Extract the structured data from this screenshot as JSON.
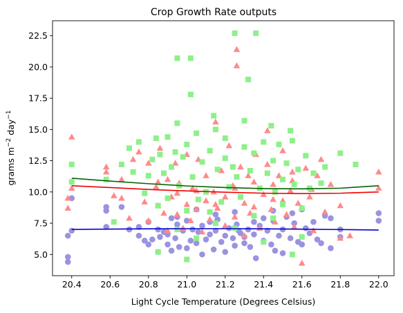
{
  "chart_data": {
    "type": "scatter",
    "title": "Crop Growth Rate outputs",
    "xlabel": "Light Cycle Temperature (Degrees Celsius)",
    "ylabel": {
      "base": "grams m",
      "exp1": "−2",
      "mid": " day",
      "exp2": "−1"
    },
    "xlim": [
      20.3,
      22.08
    ],
    "ylim": [
      3.3,
      23.7
    ],
    "x_ticks": [
      "20.4",
      "20.6",
      "20.8",
      "21.0",
      "21.2",
      "21.4",
      "21.6",
      "21.8",
      "22.0"
    ],
    "y_ticks": [
      "5.0",
      "7.5",
      "10.0",
      "12.5",
      "15.0",
      "17.5",
      "20.0",
      "22.5"
    ],
    "grid": false,
    "legend": "none",
    "colors": {
      "purple_series": "#9a93e0",
      "pink_series": "#ff8a8a",
      "green_series": "#8ef08a",
      "blue_fit": "#0000cc",
      "red_fit": "#ee0000",
      "green_fit": "#006400"
    },
    "series": [
      {
        "marker": "circle",
        "color": "#9a93e0",
        "points": [
          [
            20.38,
            4.4
          ],
          [
            20.38,
            4.8
          ],
          [
            20.38,
            6.5
          ],
          [
            20.4,
            6.9
          ],
          [
            20.4,
            9.5
          ],
          [
            20.58,
            7.2
          ],
          [
            20.58,
            8.5
          ],
          [
            20.58,
            8.8
          ],
          [
            20.66,
            8.8
          ],
          [
            20.7,
            7.0
          ],
          [
            20.75,
            7.2
          ],
          [
            20.75,
            6.5
          ],
          [
            20.78,
            6.1
          ],
          [
            20.8,
            5.8
          ],
          [
            20.8,
            7.6
          ],
          [
            20.82,
            6.2
          ],
          [
            20.85,
            5.2
          ],
          [
            20.85,
            7.0
          ],
          [
            20.86,
            6.4
          ],
          [
            20.88,
            6.8
          ],
          [
            20.9,
            6.6
          ],
          [
            20.9,
            5.8
          ],
          [
            20.92,
            7.9
          ],
          [
            20.92,
            5.3
          ],
          [
            20.94,
            6.3
          ],
          [
            20.95,
            7.4
          ],
          [
            20.96,
            5.6
          ],
          [
            20.98,
            6.9
          ],
          [
            21.0,
            5.5
          ],
          [
            21.0,
            7.7
          ],
          [
            21.02,
            6.1
          ],
          [
            21.03,
            7.0
          ],
          [
            21.05,
            5.9
          ],
          [
            21.06,
            6.8
          ],
          [
            21.08,
            7.3
          ],
          [
            21.08,
            5.0
          ],
          [
            21.1,
            6.2
          ],
          [
            21.12,
            7.6
          ],
          [
            21.12,
            6.6
          ],
          [
            21.14,
            5.4
          ],
          [
            21.15,
            6.9
          ],
          [
            21.16,
            7.8
          ],
          [
            21.18,
            6.0
          ],
          [
            21.2,
            6.5
          ],
          [
            21.2,
            5.2
          ],
          [
            21.22,
            7.1
          ],
          [
            21.24,
            6.3
          ],
          [
            21.25,
            5.7
          ],
          [
            21.26,
            7.4
          ],
          [
            21.28,
            6.7
          ],
          [
            21.3,
            5.9
          ],
          [
            21.3,
            6.4
          ],
          [
            21.32,
            7.0
          ],
          [
            21.33,
            5.6
          ],
          [
            21.35,
            6.6
          ],
          [
            21.36,
            4.7
          ],
          [
            21.38,
            7.3
          ],
          [
            21.4,
            6.1
          ],
          [
            21.42,
            6.9
          ],
          [
            21.44,
            5.8
          ],
          [
            21.45,
            7.7
          ],
          [
            21.46,
            5.3
          ],
          [
            21.48,
            6.5
          ],
          [
            21.5,
            7.0
          ],
          [
            21.5,
            5.1
          ],
          [
            21.52,
            8.0
          ],
          [
            21.54,
            6.3
          ],
          [
            21.55,
            8.3
          ],
          [
            21.56,
            7.5
          ],
          [
            21.58,
            6.0
          ],
          [
            21.6,
            5.8
          ],
          [
            21.6,
            8.6
          ],
          [
            21.62,
            7.1
          ],
          [
            21.64,
            6.7
          ],
          [
            21.66,
            7.6
          ],
          [
            21.68,
            6.2
          ],
          [
            21.7,
            5.9
          ],
          [
            21.72,
            8.1
          ],
          [
            21.75,
            5.5
          ],
          [
            21.75,
            7.9
          ],
          [
            21.8,
            6.4
          ],
          [
            21.8,
            7.0
          ],
          [
            22.0,
            7.7
          ],
          [
            22.0,
            8.3
          ],
          [
            21.35,
            7.6
          ],
          [
            21.15,
            8.2
          ],
          [
            21.05,
            8.6
          ],
          [
            20.95,
            8.0
          ],
          [
            21.25,
            8.4
          ],
          [
            21.45,
            8.5
          ],
          [
            21.4,
            7.9
          ],
          [
            21.27,
            6.9
          ]
        ]
      },
      {
        "marker": "triangle",
        "color": "#ff8a8a",
        "points": [
          [
            20.38,
            8.7
          ],
          [
            20.38,
            9.5
          ],
          [
            20.4,
            10.3
          ],
          [
            20.4,
            14.4
          ],
          [
            20.58,
            11.6
          ],
          [
            20.58,
            12.0
          ],
          [
            20.62,
            9.7
          ],
          [
            20.66,
            9.5
          ],
          [
            20.66,
            11.0
          ],
          [
            20.7,
            7.9
          ],
          [
            20.72,
            12.6
          ],
          [
            20.75,
            13.2
          ],
          [
            20.78,
            9.2
          ],
          [
            20.8,
            12.3
          ],
          [
            20.8,
            7.7
          ],
          [
            20.84,
            10.4
          ],
          [
            20.85,
            8.9
          ],
          [
            20.86,
            13.5
          ],
          [
            20.88,
            8.3
          ],
          [
            20.9,
            11.0
          ],
          [
            20.9,
            6.9
          ],
          [
            20.92,
            9.6
          ],
          [
            20.94,
            12.3
          ],
          [
            20.95,
            8.2
          ],
          [
            20.96,
            10.7
          ],
          [
            20.98,
            7.1
          ],
          [
            21.0,
            13.0
          ],
          [
            21.0,
            9.0
          ],
          [
            21.02,
            7.7
          ],
          [
            21.03,
            10.3
          ],
          [
            21.05,
            8.6
          ],
          [
            21.06,
            12.6
          ],
          [
            21.08,
            6.8
          ],
          [
            21.1,
            9.3
          ],
          [
            21.1,
            11.3
          ],
          [
            21.12,
            7.8
          ],
          [
            21.14,
            10.0
          ],
          [
            21.15,
            15.6
          ],
          [
            21.16,
            8.7
          ],
          [
            21.18,
            11.7
          ],
          [
            21.2,
            7.3
          ],
          [
            21.2,
            9.6
          ],
          [
            21.22,
            13.7
          ],
          [
            21.24,
            10.5
          ],
          [
            21.25,
            8.0
          ],
          [
            21.26,
            20.1
          ],
          [
            21.26,
            21.4
          ],
          [
            21.28,
            12.0
          ],
          [
            21.3,
            6.5
          ],
          [
            21.3,
            9.1
          ],
          [
            21.32,
            11.3
          ],
          [
            21.33,
            8.3
          ],
          [
            21.35,
            10.8
          ],
          [
            21.36,
            13.0
          ],
          [
            21.38,
            7.1
          ],
          [
            21.4,
            9.8
          ],
          [
            21.42,
            12.2
          ],
          [
            21.42,
            14.9
          ],
          [
            21.44,
            8.6
          ],
          [
            21.45,
            10.6
          ],
          [
            21.46,
            7.6
          ],
          [
            21.48,
            11.3
          ],
          [
            21.5,
            9.3
          ],
          [
            21.5,
            13.3
          ],
          [
            21.52,
            8.2
          ],
          [
            21.54,
            10.1
          ],
          [
            21.55,
            11.6
          ],
          [
            21.56,
            7.2
          ],
          [
            21.58,
            9.1
          ],
          [
            21.6,
            8.7
          ],
          [
            21.6,
            4.3
          ],
          [
            21.62,
            11.9
          ],
          [
            21.64,
            9.6
          ],
          [
            21.66,
            6.9
          ],
          [
            21.68,
            11.3
          ],
          [
            21.7,
            12.6
          ],
          [
            21.72,
            8.4
          ],
          [
            21.75,
            10.6
          ],
          [
            21.8,
            8.9
          ],
          [
            21.8,
            6.3
          ],
          [
            21.85,
            6.5
          ],
          [
            22.0,
            11.6
          ],
          [
            22.0,
            10.3
          ],
          [
            21.35,
            8.8
          ],
          [
            21.25,
            10.3
          ],
          [
            21.15,
            9.0
          ],
          [
            21.05,
            10.1
          ],
          [
            20.95,
            9.9
          ],
          [
            20.85,
            10.8
          ],
          [
            21.45,
            9.4
          ],
          [
            21.55,
            10.9
          ],
          [
            21.65,
            10.2
          ]
        ]
      },
      {
        "marker": "square",
        "color": "#8ef08a",
        "points": [
          [
            20.4,
            12.2
          ],
          [
            20.4,
            10.8
          ],
          [
            20.58,
            11.0
          ],
          [
            20.62,
            7.6
          ],
          [
            20.66,
            12.2
          ],
          [
            20.7,
            13.5
          ],
          [
            20.72,
            11.6
          ],
          [
            20.75,
            14.0
          ],
          [
            20.78,
            9.9
          ],
          [
            20.8,
            11.3
          ],
          [
            20.82,
            12.6
          ],
          [
            20.84,
            14.3
          ],
          [
            20.85,
            8.9
          ],
          [
            20.86,
            13.0
          ],
          [
            20.88,
            11.5
          ],
          [
            20.9,
            9.5
          ],
          [
            20.9,
            14.4
          ],
          [
            20.92,
            12.0
          ],
          [
            20.94,
            13.2
          ],
          [
            20.95,
            20.7
          ],
          [
            20.95,
            15.5
          ],
          [
            20.96,
            10.5
          ],
          [
            20.98,
            12.8
          ],
          [
            21.0,
            8.5
          ],
          [
            21.0,
            13.8
          ],
          [
            21.02,
            20.7
          ],
          [
            21.02,
            17.8
          ],
          [
            21.03,
            11.2
          ],
          [
            21.05,
            14.7
          ],
          [
            21.06,
            9.4
          ],
          [
            21.08,
            12.4
          ],
          [
            21.1,
            10.0
          ],
          [
            21.12,
            13.3
          ],
          [
            21.12,
            8.4
          ],
          [
            21.14,
            16.1
          ],
          [
            21.15,
            15.0
          ],
          [
            21.16,
            11.8
          ],
          [
            21.18,
            9.2
          ],
          [
            21.2,
            12.7
          ],
          [
            21.2,
            14.3
          ],
          [
            21.22,
            10.4
          ],
          [
            21.24,
            12.0
          ],
          [
            21.25,
            22.7
          ],
          [
            21.26,
            11.2
          ],
          [
            21.28,
            9.6
          ],
          [
            21.3,
            13.6
          ],
          [
            21.3,
            15.7
          ],
          [
            21.32,
            19.0
          ],
          [
            21.33,
            11.7
          ],
          [
            21.35,
            13.1
          ],
          [
            21.36,
            22.7
          ],
          [
            21.38,
            10.3
          ],
          [
            21.4,
            14.0
          ],
          [
            21.42,
            11.5
          ],
          [
            21.44,
            15.3
          ],
          [
            21.45,
            12.5
          ],
          [
            21.46,
            10.0
          ],
          [
            21.48,
            13.8
          ],
          [
            21.5,
            11.0
          ],
          [
            21.5,
            9.0
          ],
          [
            21.52,
            12.3
          ],
          [
            21.54,
            14.9
          ],
          [
            21.55,
            14.1
          ],
          [
            21.56,
            10.6
          ],
          [
            21.58,
            11.8
          ],
          [
            21.6,
            8.7
          ],
          [
            21.6,
            6.4
          ],
          [
            21.62,
            12.9
          ],
          [
            21.64,
            10.3
          ],
          [
            21.66,
            11.5
          ],
          [
            21.7,
            10.7
          ],
          [
            21.72,
            12.0
          ],
          [
            21.8,
            13.1
          ],
          [
            21.88,
            12.2
          ],
          [
            21.25,
            7.1
          ],
          [
            21.15,
            7.5
          ],
          [
            21.05,
            6.3
          ],
          [
            20.95,
            7.0
          ],
          [
            21.35,
            8.1
          ],
          [
            21.45,
            7.9
          ],
          [
            21.55,
            5.0
          ],
          [
            21.0,
            4.6
          ],
          [
            20.85,
            5.2
          ],
          [
            21.4,
            6.0
          ]
        ]
      }
    ],
    "fit_lines": [
      {
        "color": "#0000cc",
        "points": [
          [
            20.4,
            7.0
          ],
          [
            20.6,
            7.03
          ],
          [
            20.8,
            7.05
          ],
          [
            21.0,
            7.06
          ],
          [
            21.2,
            7.06
          ],
          [
            21.4,
            7.05
          ],
          [
            21.6,
            7.02
          ],
          [
            21.8,
            6.99
          ],
          [
            22.0,
            6.95
          ]
        ]
      },
      {
        "color": "#ee0000",
        "points": [
          [
            20.4,
            10.5
          ],
          [
            20.6,
            10.35
          ],
          [
            20.8,
            10.2
          ],
          [
            21.0,
            10.08
          ],
          [
            21.2,
            9.98
          ],
          [
            21.4,
            9.9
          ],
          [
            21.6,
            9.87
          ],
          [
            21.8,
            9.9
          ],
          [
            22.0,
            10.0
          ]
        ]
      },
      {
        "color": "#006400",
        "points": [
          [
            20.4,
            11.1
          ],
          [
            20.6,
            10.87
          ],
          [
            20.8,
            10.66
          ],
          [
            21.0,
            10.48
          ],
          [
            21.2,
            10.35
          ],
          [
            21.4,
            10.27
          ],
          [
            21.6,
            10.25
          ],
          [
            21.8,
            10.3
          ],
          [
            22.0,
            10.5
          ]
        ]
      }
    ]
  }
}
